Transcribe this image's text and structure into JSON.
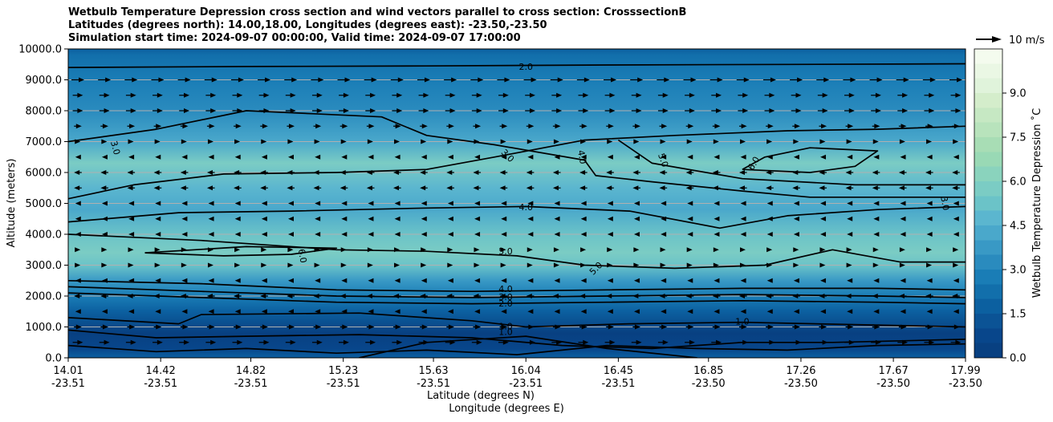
{
  "chart_data": {
    "type": "heatmap",
    "title": [
      "Wetbulb Temperature Depression cross section and wind vectors parallel to cross section: CrosssectionB",
      "Latitudes (degrees north): 14.00,18.00, Longitudes (degrees east): -23.50,-23.50",
      "Simulation start time: 2024-09-07 00:00:00, Valid time: 2024-09-07 17:00:00"
    ],
    "xlabel": "Latitude (degrees N)",
    "xlabel2": "Longitude (degrees E)",
    "ylabel": "Altitude (meters)",
    "x_ticks_lat": [
      "14.01",
      "14.42",
      "14.82",
      "15.23",
      "15.63",
      "16.04",
      "16.45",
      "16.85",
      "17.26",
      "17.67",
      "17.99"
    ],
    "x_ticks_lon": [
      "-23.51",
      "-23.51",
      "-23.51",
      "-23.51",
      "-23.51",
      "-23.51",
      "-23.51",
      "-23.50",
      "-23.50",
      "-23.50",
      "-23.50"
    ],
    "x_tick_values": [
      14.01,
      14.42,
      14.82,
      15.23,
      15.63,
      16.04,
      16.45,
      16.85,
      17.26,
      17.67,
      17.99
    ],
    "xlim": [
      14.01,
      17.99
    ],
    "y_ticks": [
      "0.0",
      "1000.0",
      "2000.0",
      "3000.0",
      "4000.0",
      "5000.0",
      "6000.0",
      "7000.0",
      "8000.0",
      "9000.0",
      "10000.0"
    ],
    "y_tick_values": [
      0,
      1000,
      2000,
      3000,
      4000,
      5000,
      6000,
      7000,
      8000,
      9000,
      10000
    ],
    "ylim": [
      0,
      10000
    ],
    "grid": "horizontal",
    "colorbar": {
      "label": "Wetbulb Temperature Depression ˚C",
      "range": [
        0,
        10.5
      ],
      "levels": [
        0.0,
        0.5,
        1.0,
        1.5,
        2.0,
        2.5,
        3.0,
        3.5,
        4.0,
        4.5,
        5.0,
        5.5,
        6.0,
        6.5,
        7.0,
        7.5,
        8.0,
        8.5,
        9.0,
        9.5,
        10.0
      ],
      "colors": [
        "#084081",
        "#08468b",
        "#0b5395",
        "#0c60a0",
        "#126fab",
        "#1a7db6",
        "#2a8bbe",
        "#3999c5",
        "#4aa8cb",
        "#5bb6cf",
        "#6bc3c8",
        "#7bccc4",
        "#8ad3bd",
        "#99d9b5",
        "#a8ddb5",
        "#b8e3bc",
        "#c6e8c3",
        "#d4edcb",
        "#e0f3db",
        "#eaf7e4",
        "#f4fbee"
      ],
      "tick_labels": [
        "0.0",
        "1.5",
        "3.0",
        "4.5",
        "6.0",
        "7.5",
        "9.0"
      ],
      "tick_values": [
        0.0,
        1.5,
        3.0,
        4.5,
        6.0,
        7.5,
        9.0
      ]
    },
    "field_bands": [
      {
        "alt": 0,
        "value": 1.5
      },
      {
        "alt": 300,
        "value": 0.8
      },
      {
        "alt": 800,
        "value": 0.3
      },
      {
        "alt": 1500,
        "value": 1.5
      },
      {
        "alt": 2000,
        "value": 2.5
      },
      {
        "alt": 2500,
        "value": 3.8
      },
      {
        "alt": 3000,
        "value": 5.4
      },
      {
        "alt": 3400,
        "value": 5.9
      },
      {
        "alt": 4000,
        "value": 5.0
      },
      {
        "alt": 4800,
        "value": 4.1
      },
      {
        "alt": 5500,
        "value": 4.6
      },
      {
        "alt": 6300,
        "value": 5.8
      },
      {
        "alt": 7000,
        "value": 4.0
      },
      {
        "alt": 8000,
        "value": 3.2
      },
      {
        "alt": 9000,
        "value": 2.6
      },
      {
        "alt": 9800,
        "value": 2.0
      },
      {
        "alt": 10000,
        "value": 1.8
      }
    ],
    "contours": [
      {
        "level": "2.0",
        "points": [
          [
            14.01,
            9400
          ],
          [
            14.8,
            9430
          ],
          [
            15.6,
            9450
          ],
          [
            16.4,
            9480
          ],
          [
            17.2,
            9500
          ],
          [
            17.99,
            9520
          ]
        ]
      },
      {
        "level": "3.0",
        "points": [
          [
            14.01,
            5150
          ],
          [
            14.3,
            5600
          ],
          [
            14.7,
            5950
          ],
          [
            15.2,
            6000
          ],
          [
            15.6,
            6100
          ],
          [
            15.9,
            6500
          ],
          [
            16.3,
            7050
          ],
          [
            16.7,
            7200
          ],
          [
            17.2,
            7350
          ],
          [
            17.6,
            7400
          ],
          [
            17.99,
            7500
          ]
        ]
      },
      {
        "level": "3.0",
        "points": [
          [
            14.01,
            7000
          ],
          [
            14.4,
            7400
          ],
          [
            14.8,
            8000
          ],
          [
            15.1,
            7900
          ],
          [
            15.4,
            7800
          ],
          [
            15.6,
            7200
          ],
          [
            15.9,
            6900
          ],
          [
            16.3,
            6400
          ]
        ]
      },
      {
        "level": "4.0",
        "points": [
          [
            14.01,
            4400
          ],
          [
            14.5,
            4700
          ],
          [
            15.0,
            4750
          ],
          [
            15.6,
            4850
          ],
          [
            16.04,
            4900
          ],
          [
            16.5,
            4750
          ],
          [
            16.9,
            4200
          ],
          [
            17.2,
            4600
          ],
          [
            17.6,
            4800
          ],
          [
            17.99,
            4900
          ]
        ]
      },
      {
        "level": "4.0",
        "points": [
          [
            16.3,
            6400
          ],
          [
            16.35,
            5900
          ],
          [
            16.6,
            5700
          ],
          [
            17.0,
            5400
          ],
          [
            17.3,
            5200
          ],
          [
            17.99,
            5200
          ]
        ]
      },
      {
        "level": "5.0",
        "points": [
          [
            14.01,
            4000
          ],
          [
            14.6,
            3800
          ],
          [
            15.2,
            3500
          ],
          [
            15.6,
            3450
          ],
          [
            16.0,
            3300
          ],
          [
            16.3,
            3000
          ],
          [
            16.7,
            2900
          ],
          [
            17.1,
            3000
          ],
          [
            17.4,
            3500
          ],
          [
            17.7,
            3100
          ],
          [
            17.99,
            3100
          ]
        ]
      },
      {
        "level": "5.0",
        "points": [
          [
            16.45,
            7050
          ],
          [
            16.6,
            6300
          ],
          [
            17.0,
            5800
          ],
          [
            17.5,
            5600
          ],
          [
            17.99,
            5600
          ]
        ]
      },
      {
        "level": "6.0",
        "points": [
          [
            14.35,
            3400
          ],
          [
            14.7,
            3300
          ],
          [
            15.0,
            3350
          ],
          [
            15.2,
            3550
          ],
          [
            14.8,
            3600
          ],
          [
            14.35,
            3400
          ]
        ]
      },
      {
        "level": "6.0",
        "points": [
          [
            17.0,
            6100
          ],
          [
            17.3,
            6000
          ],
          [
            17.5,
            6200
          ],
          [
            17.6,
            6700
          ],
          [
            17.3,
            6800
          ],
          [
            17.1,
            6500
          ],
          [
            17.0,
            6100
          ]
        ]
      },
      {
        "level": "4.0",
        "points": [
          [
            14.01,
            2500
          ],
          [
            14.6,
            2400
          ],
          [
            15.2,
            2200
          ],
          [
            15.8,
            2150
          ],
          [
            16.4,
            2200
          ],
          [
            17.0,
            2250
          ],
          [
            17.6,
            2250
          ],
          [
            17.99,
            2200
          ]
        ]
      },
      {
        "level": "3.0",
        "points": [
          [
            14.01,
            2300
          ],
          [
            14.6,
            2150
          ],
          [
            15.2,
            2000
          ],
          [
            15.8,
            1950
          ],
          [
            16.4,
            2000
          ],
          [
            17.0,
            2050
          ],
          [
            17.6,
            2000
          ],
          [
            17.99,
            1950
          ]
        ]
      },
      {
        "level": "2.0",
        "points": [
          [
            14.01,
            2100
          ],
          [
            14.6,
            1950
          ],
          [
            15.2,
            1800
          ],
          [
            15.8,
            1750
          ],
          [
            16.4,
            1800
          ],
          [
            17.0,
            1850
          ],
          [
            17.6,
            1800
          ],
          [
            17.99,
            1750
          ]
        ]
      },
      {
        "level": "1.0",
        "points": [
          [
            14.01,
            1300
          ],
          [
            14.5,
            1100
          ],
          [
            14.6,
            1400
          ],
          [
            15.3,
            1450
          ],
          [
            15.8,
            1200
          ],
          [
            16.04,
            1000
          ],
          [
            16.5,
            1100
          ],
          [
            17.0,
            1150
          ],
          [
            17.99,
            1000
          ]
        ]
      },
      {
        "level": "1.0",
        "points": [
          [
            14.01,
            900
          ],
          [
            14.4,
            650
          ],
          [
            14.8,
            700
          ],
          [
            15.3,
            750
          ],
          [
            15.8,
            650
          ],
          [
            16.2,
            400
          ],
          [
            16.6,
            300
          ],
          [
            17.0,
            500
          ],
          [
            17.4,
            500
          ],
          [
            17.99,
            600
          ]
        ]
      },
      {
        "level": "2.0",
        "points": [
          [
            14.01,
            400
          ],
          [
            14.4,
            200
          ],
          [
            14.8,
            300
          ],
          [
            15.2,
            150
          ],
          [
            15.6,
            250
          ],
          [
            16.0,
            100
          ],
          [
            16.4,
            400
          ],
          [
            16.8,
            300
          ],
          [
            17.2,
            250
          ],
          [
            17.6,
            400
          ],
          [
            17.99,
            450
          ]
        ]
      },
      {
        "level": "3.0",
        "points": [
          [
            15.3,
            0
          ],
          [
            15.6,
            500
          ],
          [
            16.04,
            700
          ],
          [
            16.4,
            300
          ],
          [
            16.8,
            0
          ]
        ]
      }
    ],
    "contour_labels": [
      {
        "text": "2.0",
        "x": 16.04,
        "y": 9430,
        "angle": 0
      },
      {
        "text": "3.0",
        "x": 14.22,
        "y": 6800,
        "angle": 75
      },
      {
        "text": "3.0",
        "x": 15.96,
        "y": 6550,
        "angle": 45
      },
      {
        "text": "4.0",
        "x": 16.29,
        "y": 6500,
        "angle": 80
      },
      {
        "text": "5.0",
        "x": 16.65,
        "y": 6400,
        "angle": 70
      },
      {
        "text": "6.0",
        "x": 17.05,
        "y": 6300,
        "angle": -60
      },
      {
        "text": "3.0",
        "x": 17.9,
        "y": 5000,
        "angle": 80
      },
      {
        "text": "4.0",
        "x": 16.04,
        "y": 4880,
        "angle": 0
      },
      {
        "text": "5.0",
        "x": 15.95,
        "y": 3450,
        "angle": 0
      },
      {
        "text": "6.0",
        "x": 15.05,
        "y": 3300,
        "angle": 80
      },
      {
        "text": "5.0",
        "x": 16.35,
        "y": 2900,
        "angle": -45
      },
      {
        "text": "4.0",
        "x": 15.95,
        "y": 2230,
        "angle": 0
      },
      {
        "text": "3.0",
        "x": 15.95,
        "y": 1980,
        "angle": 0
      },
      {
        "text": "2.0",
        "x": 15.95,
        "y": 1770,
        "angle": 0
      },
      {
        "text": "1.0",
        "x": 17.0,
        "y": 1180,
        "angle": 0
      },
      {
        "text": "1.0",
        "x": 15.95,
        "y": 1030,
        "angle": 0
      },
      {
        "text": "1.0",
        "x": 15.95,
        "y": 850,
        "angle": 0
      }
    ],
    "wind_vectors": {
      "reference_label": "10 m/s",
      "reference_speed": 10,
      "rows": [
        {
          "alt": 9000,
          "u": 5
        },
        {
          "alt": 8500,
          "u": 4
        },
        {
          "alt": 8000,
          "u": 4
        },
        {
          "alt": 7500,
          "u": 3
        },
        {
          "alt": 7000,
          "u": 2
        },
        {
          "alt": 6500,
          "u": -2
        },
        {
          "alt": 6000,
          "u": -3
        },
        {
          "alt": 5500,
          "u": -3
        },
        {
          "alt": 5000,
          "u": -2
        },
        {
          "alt": 4500,
          "u": -2
        },
        {
          "alt": 4000,
          "u": -2
        },
        {
          "alt": 3500,
          "u": 2
        },
        {
          "alt": 3000,
          "u": 2
        },
        {
          "alt": 2500,
          "u": -2
        },
        {
          "alt": 2000,
          "u": -3
        },
        {
          "alt": 1500,
          "u": -2
        },
        {
          "alt": 1000,
          "u": 3
        },
        {
          "alt": 500,
          "u": 4
        }
      ]
    }
  }
}
